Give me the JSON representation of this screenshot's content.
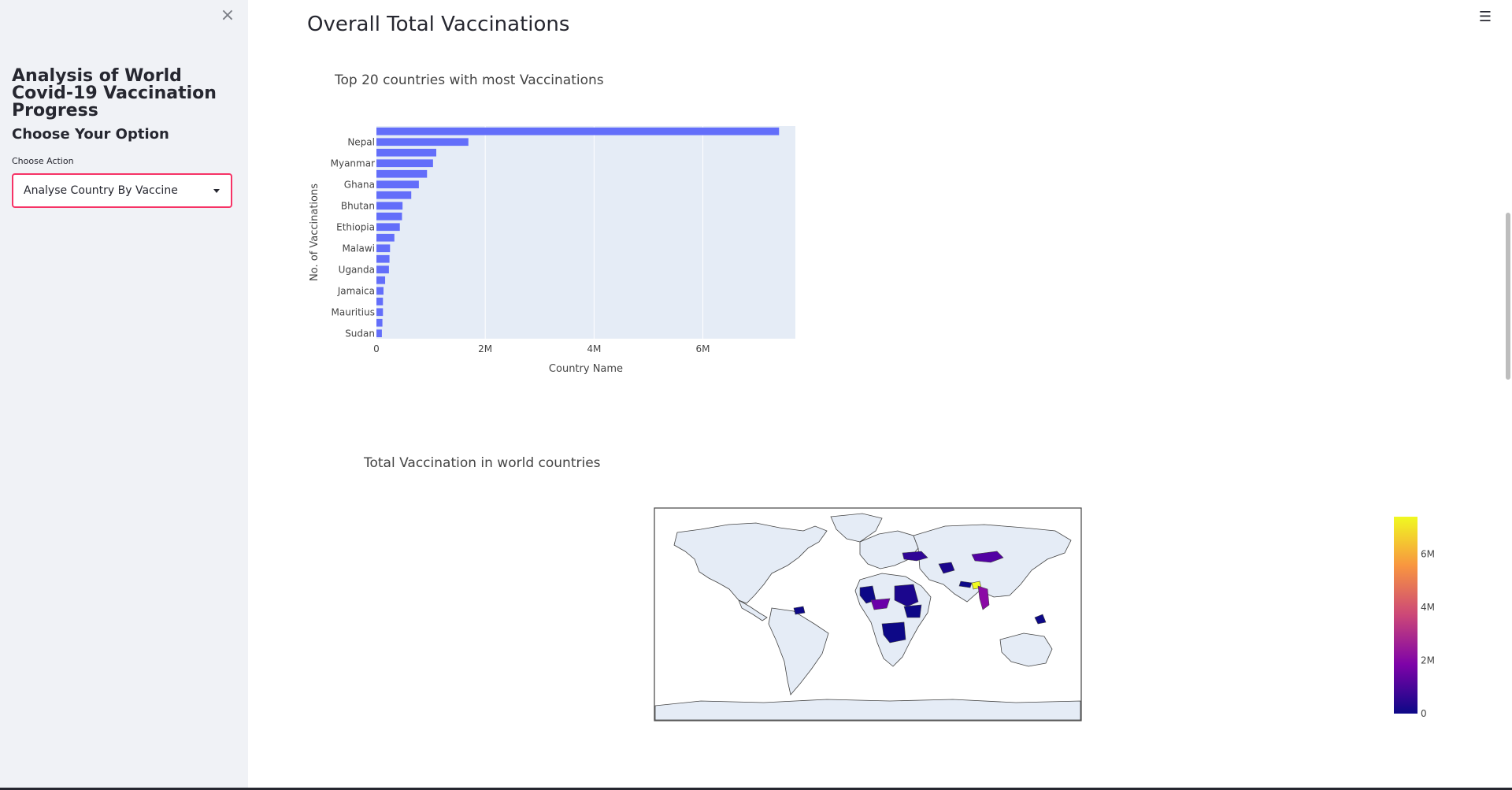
{
  "sidebar": {
    "title": "Analysis of World Covid-19 Vaccination Progress",
    "option_heading": "Choose Your Option",
    "select_label": "Choose Action",
    "select_value": "Analyse Country By Vaccine",
    "close_icon": "close-icon"
  },
  "header": {
    "menu_icon": "hamburger-menu-icon"
  },
  "main": {
    "page_title": "Overall Total Vaccinations"
  },
  "chart_data": [
    {
      "type": "bar",
      "orientation": "horizontal",
      "title": "Top 20 countries with most Vaccinations",
      "xlabel": "Country Name",
      "ylabel": "No. of Vaccinations",
      "xlim": [
        0,
        7700000
      ],
      "x_ticks": [
        "0",
        "2M",
        "4M",
        "6M"
      ],
      "x_tick_values": [
        0,
        2000000,
        4000000,
        6000000
      ],
      "categories": [
        "",
        "Nepal",
        "",
        "Myanmar",
        "",
        "Ghana",
        "",
        "Bhutan",
        "",
        "Ethiopia",
        "",
        "Malawi",
        "",
        "Uganda",
        "",
        "Jamaica",
        "",
        "Mauritius",
        "",
        "Sudan"
      ],
      "values": [
        7400000,
        1690000,
        1100000,
        1040000,
        930000,
        780000,
        640000,
        480000,
        470000,
        430000,
        330000,
        250000,
        240000,
        230000,
        160000,
        130000,
        120000,
        120000,
        110000,
        100000
      ],
      "bar_color": "#636efa",
      "grid": true
    },
    {
      "type": "choropleth",
      "title": "Total Vaccination in world countries",
      "colorbar": {
        "ticks": [
          "0",
          "2M",
          "4M",
          "6M"
        ],
        "tick_values": [
          0,
          2000000,
          4000000,
          6000000
        ],
        "max": 7400000,
        "colors": [
          "#0d0887",
          "#7e03a8",
          "#cc4778",
          "#f89540",
          "#f0f921"
        ]
      }
    }
  ]
}
